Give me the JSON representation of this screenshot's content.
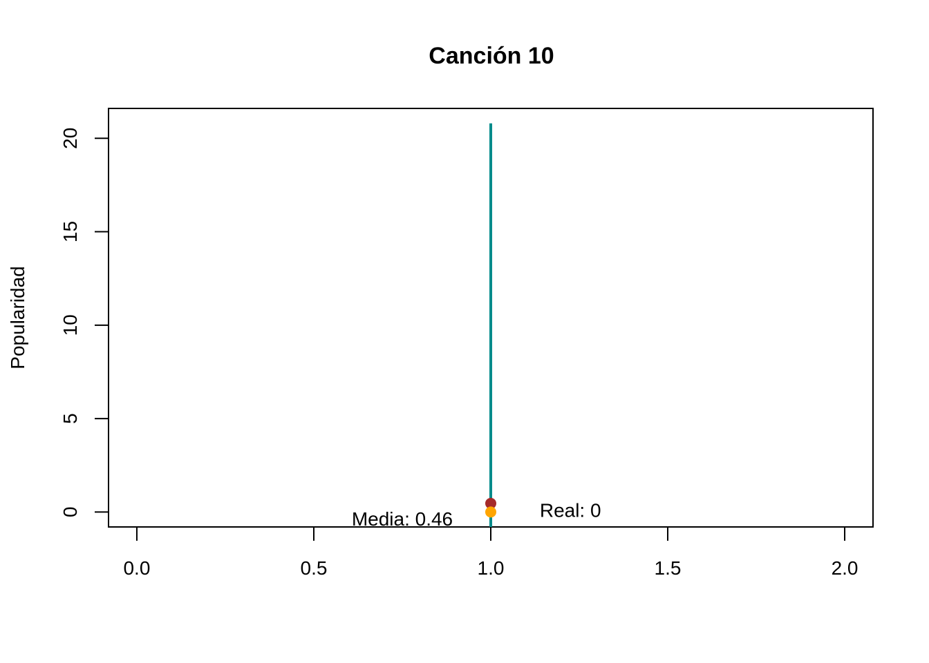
{
  "chart_data": {
    "type": "scatter",
    "title": "Canción 10",
    "xlabel": "",
    "ylabel": "Popularidad",
    "xlim": [
      -0.08,
      2.08
    ],
    "ylim": [
      -0.8,
      21.6
    ],
    "x_ticks": [
      0.0,
      0.5,
      1.0,
      1.5,
      2.0
    ],
    "x_tick_labels": [
      "0.0",
      "0.5",
      "1.0",
      "1.5",
      "2.0"
    ],
    "y_ticks": [
      0,
      5,
      10,
      15,
      20
    ],
    "y_tick_labels": [
      "0",
      "5",
      "10",
      "15",
      "20"
    ],
    "grid": false,
    "segment": {
      "x": 1.0,
      "y_from": -0.8,
      "y_to": 20.8,
      "color": "#008b8b"
    },
    "points": [
      {
        "label": "Media",
        "x": 1.0,
        "y": 0.46,
        "color": "#a52a2a"
      },
      {
        "label": "Real",
        "x": 1.0,
        "y": 0,
        "color": "#ffa500"
      }
    ],
    "annotations": [
      {
        "text": "Media: 0.46",
        "x": 0.75,
        "y": -0.35
      },
      {
        "text": "Real: 0",
        "x": 1.225,
        "y": 0.1
      }
    ]
  }
}
